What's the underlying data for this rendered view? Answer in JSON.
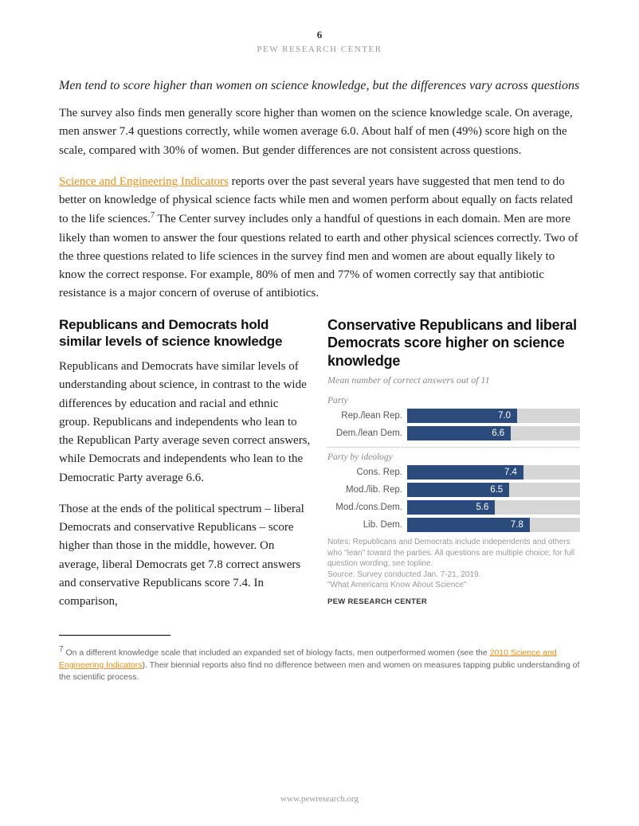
{
  "page_number": "6",
  "org_header": "PEW RESEARCH CENTER",
  "subheading_italic": "Men tend to score higher than women on science knowledge, but the differences vary across questions",
  "para1": "The survey also finds men generally score higher than women on the science knowledge scale. On average, men answer 7.4 questions correctly, while women average 6.0. About half of men (49%) score high on the scale, compared with 30% of women. But gender differences are not consistent across questions.",
  "link1_text": "Science and Engineering Indicators",
  "para2_after_link": " reports over the past several years have suggested that men tend to do better on knowledge of physical science facts while men and women perform about equally on facts related to the life sciences.",
  "footref1": "7",
  "para2_cont": " The Center survey includes only a handful of questions in each domain. Men are more likely than women to answer the four questions related to earth and other physical sciences correctly. Two of the three questions related to life sciences in the survey find men and women are about equally likely to know the correct response. For example, 80% of men and 77% of women correctly say that antibiotic resistance is a major concern of overuse of antibiotics.",
  "section_heading": "Republicans and Democrats hold similar levels of science knowledge",
  "left_p1": "Republicans and Democrats have similar levels of understanding about science, in contrast to the wide differences by education and racial and ethnic group. Republicans and independents who lean to the Republican Party average seven correct answers, while Democrats and independents who lean to the Democratic Party average 6.6.",
  "left_p2": "Those at the ends of the political spectrum – liberal Democrats and conservative Republicans – score higher than those in the middle, however. On average, liberal Democrats get 7.8 correct answers and conservative Republicans score 7.4. In comparison,",
  "chart": {
    "title": "Conservative Republicans and liberal Democrats score higher on science knowledge",
    "subtitle": "Mean number of correct answers out of 11",
    "max_value": 11,
    "bar_color": "#2a4b7c",
    "track_color": "#d6d6d6",
    "value_text_color": "#ffffff",
    "group1_label": "Party",
    "group1": [
      {
        "label": "Rep./lean Rep.",
        "value": 7.0,
        "value_text": "7.0"
      },
      {
        "label": "Dem./lean Dem.",
        "value": 6.6,
        "value_text": "6.6"
      }
    ],
    "group2_label": "Party by ideology",
    "group2": [
      {
        "label": "Cons. Rep.",
        "value": 7.4,
        "value_text": "7.4"
      },
      {
        "label": "Mod./lib. Rep.",
        "value": 6.5,
        "value_text": "6.5"
      },
      {
        "label": "Mod./cons.Dem.",
        "value": 5.6,
        "value_text": "5.6"
      },
      {
        "label": "Lib. Dem.",
        "value": 7.8,
        "value_text": "7.8"
      }
    ],
    "notes_l1": "Notes: Republicans and Democrats include independents and others who \"lean\" toward the parties. All questions are multiple choice; for full question wording, see topline.",
    "notes_l2": "Source: Survey conducted Jan. 7-21, 2019.",
    "notes_l3": "\"What Americans Know About Science\"",
    "source_brand": "PEW RESEARCH CENTER"
  },
  "footnote": {
    "marker": "7",
    "t1": " On a different knowledge scale that included an expanded set of biology facts, men outperformed women (see the ",
    "link_text": "2010 Science and Engineering Indicators",
    "t2": "). Their biennial reports also find no difference between men and women on measures tapping public understanding of the scientific process."
  },
  "footer_url": "www.pewresearch.org"
}
